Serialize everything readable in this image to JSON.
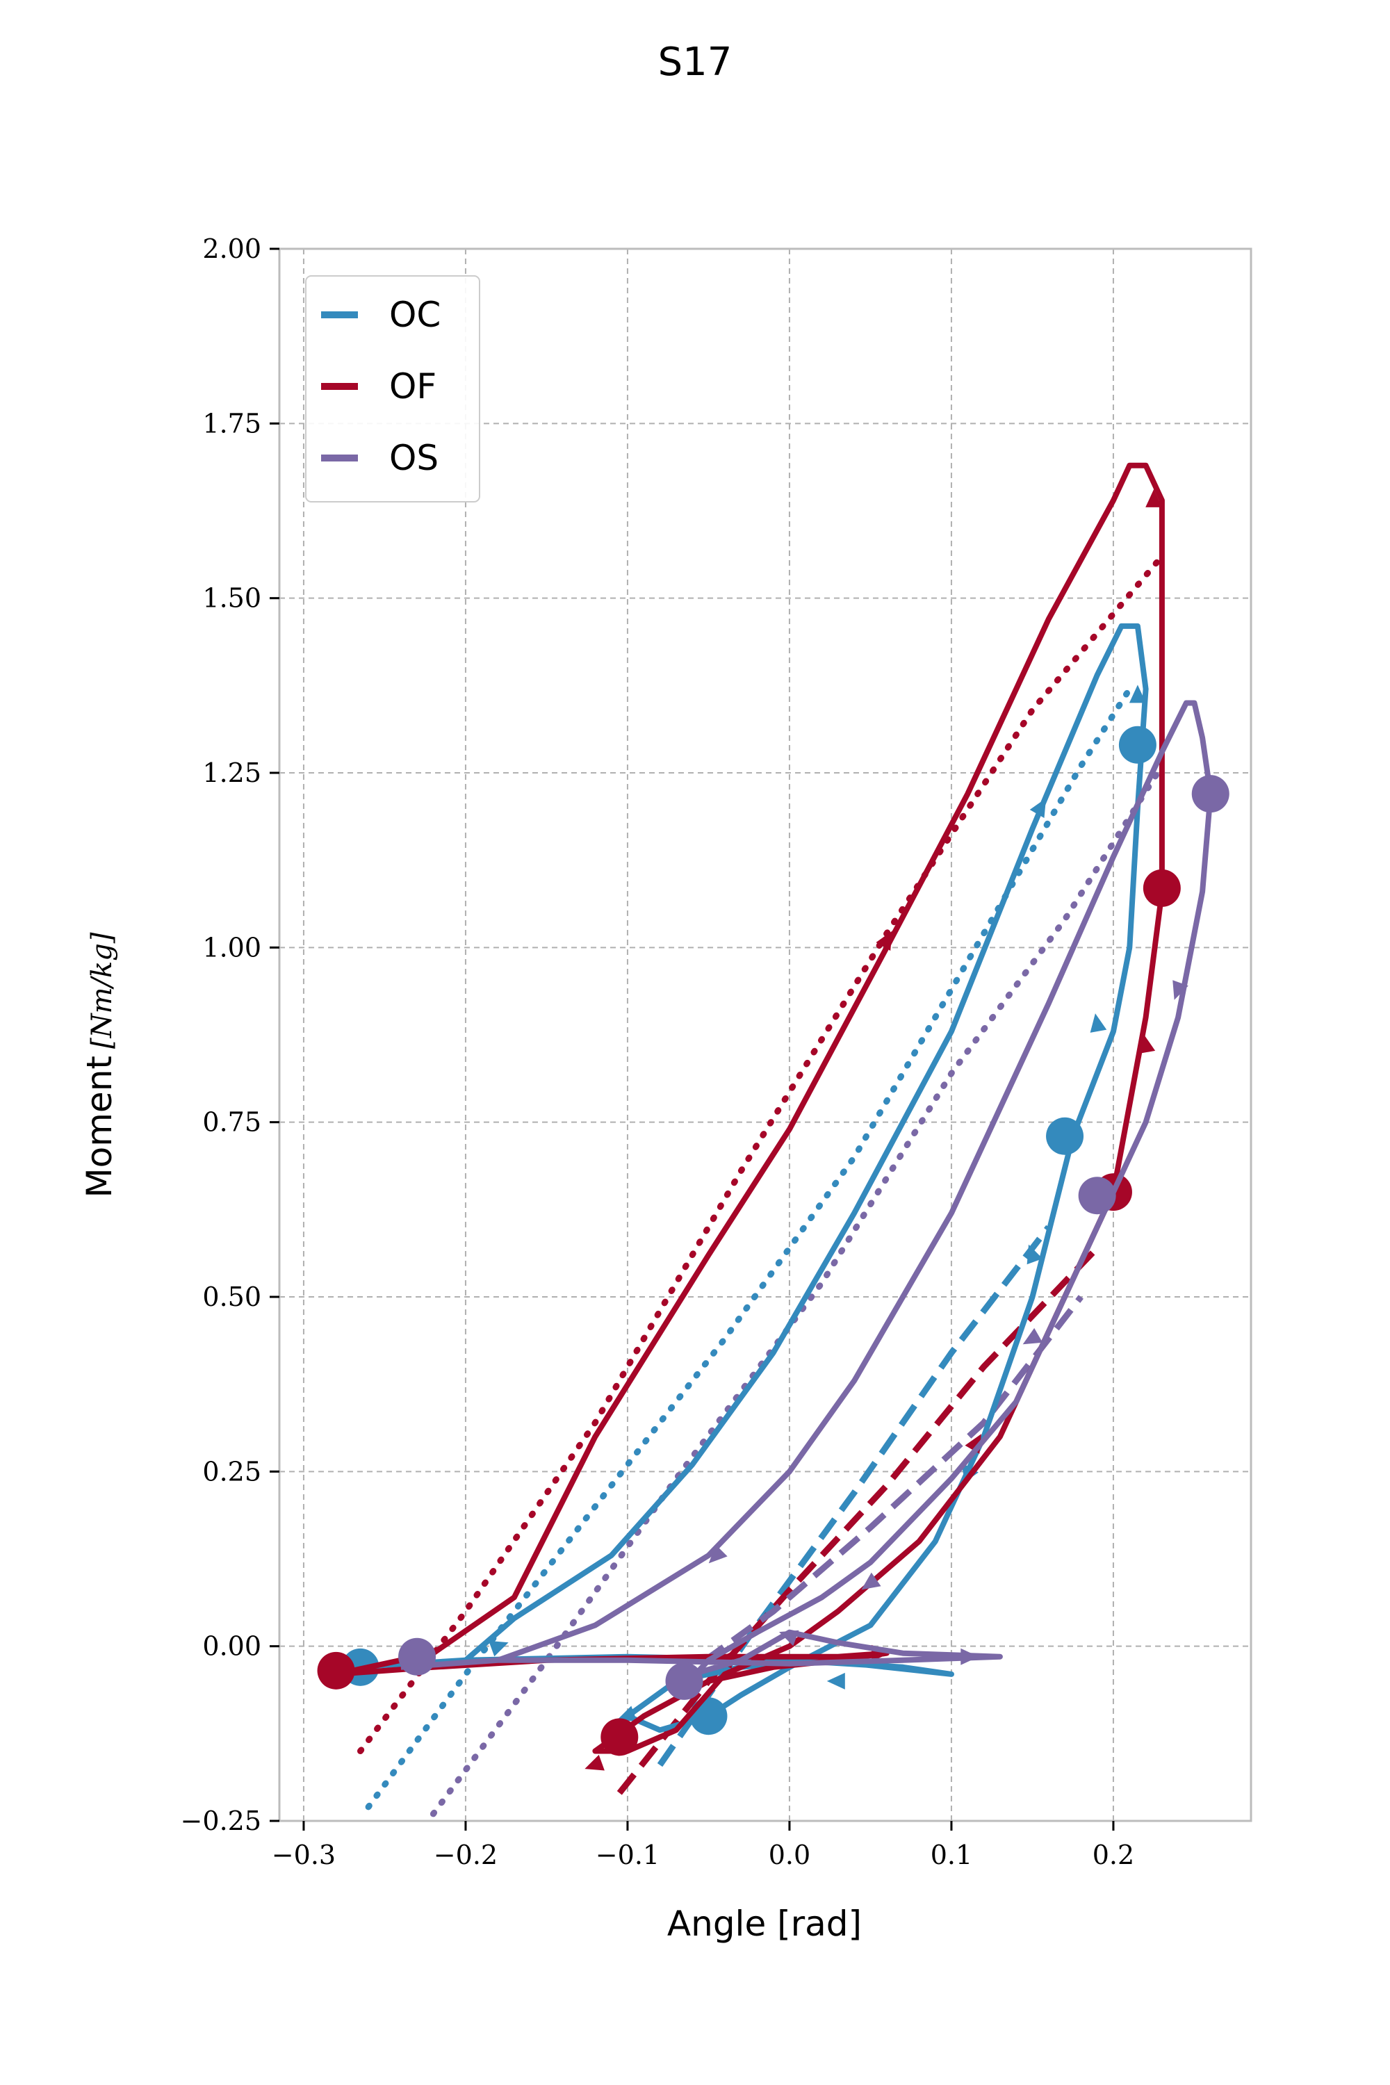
{
  "chart_data": {
    "type": "line",
    "title": "S17",
    "xlabel": "Angle [rad]",
    "ylabel": "Moment",
    "ylabel_unit": "[Nm/kg]",
    "xlim": [
      -0.315,
      0.285
    ],
    "ylim": [
      -0.25,
      2.0
    ],
    "x_ticks": [
      -0.3,
      -0.2,
      -0.1,
      0.0,
      0.1,
      0.2
    ],
    "x_tick_labels": [
      "−0.3",
      "−0.2",
      "−0.1",
      "0.0",
      "0.1",
      "0.2"
    ],
    "y_ticks": [
      -0.25,
      0.0,
      0.25,
      0.5,
      0.75,
      1.0,
      1.25,
      1.5,
      1.75,
      2.0
    ],
    "y_tick_labels": [
      "−0.25",
      "0.00",
      "0.25",
      "0.50",
      "0.75",
      "1.00",
      "1.25",
      "1.50",
      "1.75",
      "2.00"
    ],
    "grid": true,
    "legend_position": "top-left",
    "colors": {
      "OC": "#348ABD",
      "OF": "#A60628",
      "OS": "#7A68A6"
    },
    "series": [
      {
        "name": "OC",
        "color": "#348ABD",
        "loop": [
          [
            -0.27,
            -0.03
          ],
          [
            -0.2,
            -0.02
          ],
          [
            -0.17,
            0.04
          ],
          [
            -0.11,
            0.13
          ],
          [
            -0.06,
            0.26
          ],
          [
            -0.01,
            0.42
          ],
          [
            0.04,
            0.62
          ],
          [
            0.1,
            0.88
          ],
          [
            0.15,
            1.17
          ],
          [
            0.19,
            1.39
          ],
          [
            0.205,
            1.46
          ],
          [
            0.215,
            1.46
          ],
          [
            0.22,
            1.37
          ],
          [
            0.215,
            1.2
          ],
          [
            0.21,
            1.0
          ],
          [
            0.2,
            0.88
          ],
          [
            0.175,
            0.73
          ],
          [
            0.15,
            0.5
          ],
          [
            0.12,
            0.3
          ],
          [
            0.09,
            0.15
          ],
          [
            0.05,
            0.03
          ],
          [
            0.0,
            -0.03
          ],
          [
            -0.03,
            -0.07
          ],
          [
            -0.05,
            -0.1
          ],
          [
            -0.08,
            -0.12
          ],
          [
            -0.1,
            -0.1
          ],
          [
            -0.07,
            -0.05
          ],
          [
            -0.03,
            -0.03
          ],
          [
            0.02,
            -0.02
          ],
          [
            0.06,
            -0.03
          ],
          [
            0.1,
            -0.04
          ],
          [
            0.07,
            -0.03
          ],
          [
            0.0,
            -0.02
          ],
          [
            -0.1,
            -0.015
          ],
          [
            -0.2,
            -0.02
          ],
          [
            -0.27,
            -0.03
          ]
        ],
        "dotted": [
          [
            -0.26,
            -0.23
          ],
          [
            -0.2,
            -0.04
          ],
          [
            -0.12,
            0.2
          ],
          [
            -0.04,
            0.44
          ],
          [
            0.04,
            0.7
          ],
          [
            0.12,
            1.02
          ],
          [
            0.18,
            1.26
          ],
          [
            0.21,
            1.37
          ]
        ],
        "dashed": [
          [
            -0.08,
            -0.17
          ],
          [
            -0.02,
            0.03
          ],
          [
            0.04,
            0.22
          ],
          [
            0.1,
            0.42
          ],
          [
            0.16,
            0.6
          ]
        ],
        "markers": [
          [
            -0.265,
            -0.03
          ],
          [
            -0.05,
            -0.1
          ],
          [
            0.17,
            0.73
          ],
          [
            0.215,
            1.29
          ]
        ],
        "arrows": [
          [
            -0.18,
            0.0,
            20
          ],
          [
            0.155,
            1.2,
            60
          ],
          [
            0.215,
            1.36,
            90
          ],
          [
            0.19,
            0.89,
            100
          ],
          [
            0.15,
            0.56,
            110
          ],
          [
            0.11,
            0.25,
            125
          ],
          [
            0.03,
            -0.05,
            180
          ],
          [
            -0.1,
            -0.1,
            200
          ]
        ]
      },
      {
        "name": "OF",
        "color": "#A60628",
        "loop": [
          [
            -0.28,
            -0.04
          ],
          [
            -0.22,
            -0.01
          ],
          [
            -0.17,
            0.07
          ],
          [
            -0.12,
            0.3
          ],
          [
            -0.05,
            0.56
          ],
          [
            0.0,
            0.74
          ],
          [
            0.06,
            1.0
          ],
          [
            0.11,
            1.22
          ],
          [
            0.16,
            1.47
          ],
          [
            0.2,
            1.64
          ],
          [
            0.21,
            1.69
          ],
          [
            0.22,
            1.69
          ],
          [
            0.23,
            1.64
          ],
          [
            0.23,
            1.4
          ],
          [
            0.23,
            1.08
          ],
          [
            0.22,
            0.9
          ],
          [
            0.2,
            0.65
          ],
          [
            0.17,
            0.5
          ],
          [
            0.13,
            0.3
          ],
          [
            0.08,
            0.15
          ],
          [
            0.03,
            0.05
          ],
          [
            0.0,
            0.0
          ],
          [
            -0.04,
            -0.04
          ],
          [
            -0.07,
            -0.12
          ],
          [
            -0.1,
            -0.15
          ],
          [
            -0.12,
            -0.15
          ],
          [
            -0.09,
            -0.1
          ],
          [
            -0.05,
            -0.05
          ],
          [
            -0.01,
            -0.03
          ],
          [
            0.03,
            -0.02
          ],
          [
            0.06,
            -0.01
          ],
          [
            0.03,
            -0.015
          ],
          [
            -0.05,
            -0.015
          ],
          [
            -0.15,
            -0.02
          ],
          [
            -0.22,
            -0.03
          ],
          [
            -0.28,
            -0.04
          ]
        ],
        "dotted": [
          [
            -0.265,
            -0.15
          ],
          [
            -0.2,
            0.05
          ],
          [
            -0.12,
            0.32
          ],
          [
            -0.03,
            0.68
          ],
          [
            0.06,
            1.02
          ],
          [
            0.15,
            1.34
          ],
          [
            0.23,
            1.56
          ]
        ],
        "dashed": [
          [
            -0.105,
            -0.21
          ],
          [
            -0.05,
            -0.05
          ],
          [
            0.0,
            0.08
          ],
          [
            0.06,
            0.23
          ],
          [
            0.12,
            0.4
          ],
          [
            0.19,
            0.57
          ]
        ],
        "markers": [
          [
            -0.28,
            -0.035
          ],
          [
            -0.105,
            -0.13
          ],
          [
            0.2,
            0.65
          ],
          [
            0.23,
            1.085
          ]
        ],
        "arrows": [
          [
            0.06,
            1.01,
            60
          ],
          [
            0.225,
            1.64,
            90
          ],
          [
            0.22,
            0.86,
            100
          ],
          [
            0.115,
            0.29,
            60
          ],
          [
            0.055,
            -0.01,
            0
          ],
          [
            -0.12,
            -0.17,
            200
          ],
          [
            -0.04,
            -0.02,
            180
          ]
        ]
      },
      {
        "name": "OS",
        "color": "#7A68A6",
        "loop": [
          [
            -0.24,
            -0.03
          ],
          [
            -0.18,
            -0.02
          ],
          [
            -0.12,
            0.03
          ],
          [
            -0.05,
            0.13
          ],
          [
            0.0,
            0.25
          ],
          [
            0.04,
            0.38
          ],
          [
            0.1,
            0.62
          ],
          [
            0.16,
            0.92
          ],
          [
            0.2,
            1.13
          ],
          [
            0.23,
            1.28
          ],
          [
            0.245,
            1.35
          ],
          [
            0.25,
            1.35
          ],
          [
            0.255,
            1.3
          ],
          [
            0.26,
            1.22
          ],
          [
            0.255,
            1.08
          ],
          [
            0.24,
            0.9
          ],
          [
            0.22,
            0.75
          ],
          [
            0.19,
            0.6
          ],
          [
            0.14,
            0.35
          ],
          [
            0.1,
            0.24
          ],
          [
            0.05,
            0.12
          ],
          [
            0.02,
            0.07
          ],
          [
            -0.02,
            0.02
          ],
          [
            -0.05,
            -0.02
          ],
          [
            -0.07,
            -0.07
          ],
          [
            -0.06,
            -0.04
          ],
          [
            -0.03,
            -0.02
          ],
          [
            0.0,
            0.02
          ],
          [
            0.03,
            0.005
          ],
          [
            0.07,
            -0.01
          ],
          [
            0.13,
            -0.015
          ],
          [
            0.07,
            -0.02
          ],
          [
            0.0,
            -0.025
          ],
          [
            -0.1,
            -0.02
          ],
          [
            -0.18,
            -0.02
          ],
          [
            -0.24,
            -0.03
          ]
        ],
        "dotted": [
          [
            -0.22,
            -0.24
          ],
          [
            -0.15,
            -0.02
          ],
          [
            -0.07,
            0.24
          ],
          [
            0.02,
            0.52
          ],
          [
            0.1,
            0.82
          ],
          [
            0.17,
            1.04
          ],
          [
            0.23,
            1.26
          ]
        ],
        "dashed": [
          [
            -0.07,
            -0.05
          ],
          [
            -0.01,
            0.05
          ],
          [
            0.05,
            0.17
          ],
          [
            0.12,
            0.32
          ],
          [
            0.18,
            0.5
          ]
        ],
        "markers": [
          [
            -0.23,
            -0.015
          ],
          [
            -0.065,
            -0.05
          ],
          [
            0.19,
            0.645
          ],
          [
            0.26,
            1.22
          ]
        ],
        "arrows": [
          [
            -0.045,
            0.13,
            225
          ],
          [
            0.05,
            0.09,
            215
          ],
          [
            0.11,
            -0.015,
            0
          ],
          [
            0.15,
            0.44,
            210
          ],
          [
            0.24,
            0.94,
            250
          ],
          [
            0.0,
            0.015,
            160
          ]
        ]
      }
    ]
  }
}
